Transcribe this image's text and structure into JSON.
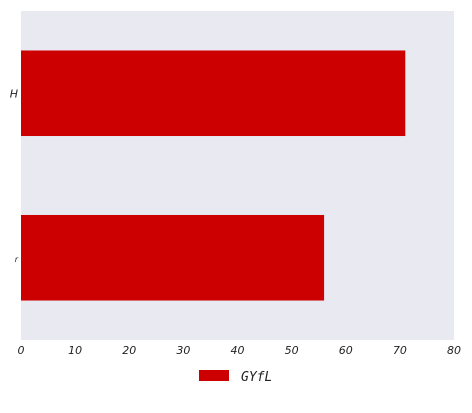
{
  "chart_data": {
    "type": "bar",
    "orientation": "horizontal",
    "categories": [
      "H",
      "r"
    ],
    "series": [
      {
        "name": "GYfL",
        "values": [
          71,
          56
        ],
        "color": "#cc0000"
      }
    ],
    "xlim": [
      0,
      80
    ],
    "x_ticks": [
      "0",
      "10",
      "20",
      "30",
      "40",
      "50",
      "60",
      "70",
      "80"
    ],
    "title": "",
    "xlabel": "",
    "ylabel": "",
    "grid": false,
    "legend_position": "bottom-center",
    "background_color": "#e9e9f1"
  }
}
